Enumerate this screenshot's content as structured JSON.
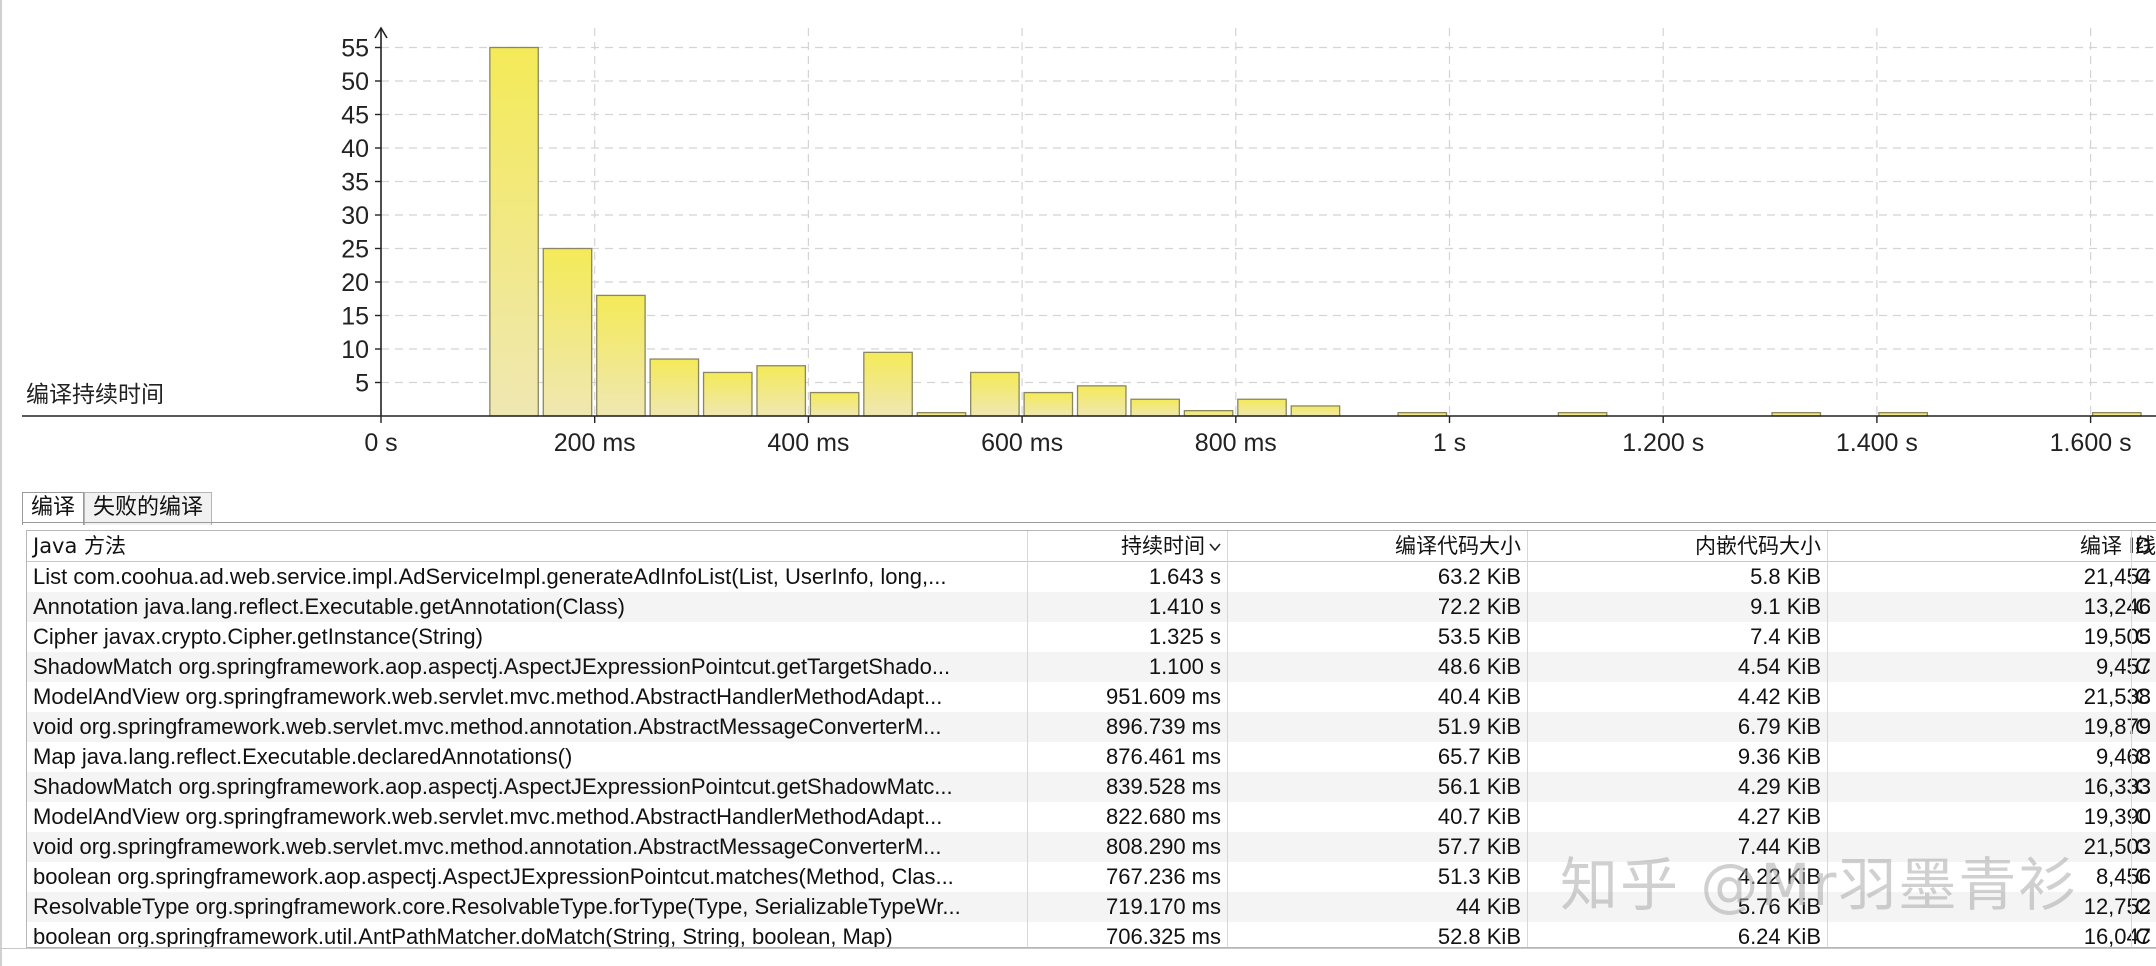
{
  "chart_data": {
    "type": "bar",
    "ylabel": "编译持续时间",
    "yticks": [
      5,
      10,
      15,
      20,
      25,
      30,
      35,
      40,
      45,
      50,
      55
    ],
    "ylim": [
      0,
      57
    ],
    "xlim": [
      0,
      1650
    ],
    "xticks": [
      {
        "v": 0,
        "label": "0 s"
      },
      {
        "v": 200,
        "label": "200 ms"
      },
      {
        "v": 400,
        "label": "400 ms"
      },
      {
        "v": 600,
        "label": "600 ms"
      },
      {
        "v": 800,
        "label": "800 ms"
      },
      {
        "v": 1000,
        "label": "1 s"
      },
      {
        "v": 1200,
        "label": "1.200 s"
      },
      {
        "v": 1400,
        "label": "1.400 s"
      },
      {
        "v": 1600,
        "label": "1.600 s"
      }
    ],
    "grid": true,
    "bin_width": 50,
    "bins": [
      {
        "x": 100,
        "v": 55
      },
      {
        "x": 150,
        "v": 25
      },
      {
        "x": 200,
        "v": 18
      },
      {
        "x": 250,
        "v": 8.5
      },
      {
        "x": 300,
        "v": 6.5
      },
      {
        "x": 350,
        "v": 7.5
      },
      {
        "x": 400,
        "v": 3.5
      },
      {
        "x": 450,
        "v": 9.5
      },
      {
        "x": 500,
        "v": 0.5
      },
      {
        "x": 550,
        "v": 6.5
      },
      {
        "x": 600,
        "v": 3.5
      },
      {
        "x": 650,
        "v": 4.5
      },
      {
        "x": 700,
        "v": 2.5
      },
      {
        "x": 750,
        "v": 0.8
      },
      {
        "x": 800,
        "v": 2.5
      },
      {
        "x": 850,
        "v": 1.5
      },
      {
        "x": 950,
        "v": 0.5
      },
      {
        "x": 1100,
        "v": 0.5
      },
      {
        "x": 1300,
        "v": 0.5
      },
      {
        "x": 1400,
        "v": 0.5
      },
      {
        "x": 1600,
        "v": 0.5
      }
    ],
    "colors": {
      "bar_top": "#f4ea58",
      "bar_bottom": "#efe7b2",
      "grid": "#d4d4d4"
    }
  },
  "tabs": [
    {
      "label": "编译",
      "active": true
    },
    {
      "label": "失败的编译",
      "active": false
    }
  ],
  "table": {
    "columns": [
      "Java 方法",
      "持续时间",
      "编译代码大小",
      "内嵌代码大小",
      "编译 ID",
      "线"
    ],
    "sort_icon": "chevron-down-icon",
    "rows": [
      [
        "List com.coohua.ad.web.service.impl.AdServiceImpl.generateAdInfoList(List, UserInfo, long,...",
        "1.643 s",
        "63.2 KiB",
        "5.8 KiB",
        "21,454",
        "C"
      ],
      [
        "Annotation java.lang.reflect.Executable.getAnnotation(Class)",
        "1.410 s",
        "72.2 KiB",
        "9.1 KiB",
        "13,246",
        "C"
      ],
      [
        "Cipher javax.crypto.Cipher.getInstance(String)",
        "1.325 s",
        "53.5 KiB",
        "7.4 KiB",
        "19,505",
        "C"
      ],
      [
        "ShadowMatch org.springframework.aop.aspectj.AspectJExpressionPointcut.getTargetShado...",
        "1.100 s",
        "48.6 KiB",
        "4.54 KiB",
        "9,457",
        "C"
      ],
      [
        "ModelAndView org.springframework.web.servlet.mvc.method.AbstractHandlerMethodAdapt...",
        "951.609 ms",
        "40.4 KiB",
        "4.42 KiB",
        "21,538",
        "C"
      ],
      [
        "void org.springframework.web.servlet.mvc.method.annotation.AbstractMessageConverterM...",
        "896.739 ms",
        "51.9 KiB",
        "6.79 KiB",
        "19,879",
        "C"
      ],
      [
        "Map java.lang.reflect.Executable.declaredAnnotations()",
        "876.461 ms",
        "65.7 KiB",
        "9.36 KiB",
        "9,468",
        "C"
      ],
      [
        "ShadowMatch org.springframework.aop.aspectj.AspectJExpressionPointcut.getShadowMatc...",
        "839.528 ms",
        "56.1 KiB",
        "4.29 KiB",
        "16,333",
        "C"
      ],
      [
        "ModelAndView org.springframework.web.servlet.mvc.method.AbstractHandlerMethodAdapt...",
        "822.680 ms",
        "40.7 KiB",
        "4.27 KiB",
        "19,390",
        "C"
      ],
      [
        "void org.springframework.web.servlet.mvc.method.annotation.AbstractMessageConverterM...",
        "808.290 ms",
        "57.7 KiB",
        "7.44 KiB",
        "21,503",
        "C"
      ],
      [
        "boolean org.springframework.aop.aspectj.AspectJExpressionPointcut.matches(Method, Clas...",
        "767.236 ms",
        "51.3 KiB",
        "4.22 KiB",
        "8,456",
        "C"
      ],
      [
        "ResolvableType org.springframework.core.ResolvableType.forType(Type, SerializableTypeWr...",
        "719.170 ms",
        "44 KiB",
        "5.76 KiB",
        "12,752",
        "C"
      ],
      [
        "boolean org.springframework.util.AntPathMatcher.doMatch(String, String, boolean, Map)",
        "706.325 ms",
        "52.8 KiB",
        "6.24 KiB",
        "16,047",
        "C"
      ]
    ]
  },
  "watermark": "知乎 @Mr羽墨青衫"
}
